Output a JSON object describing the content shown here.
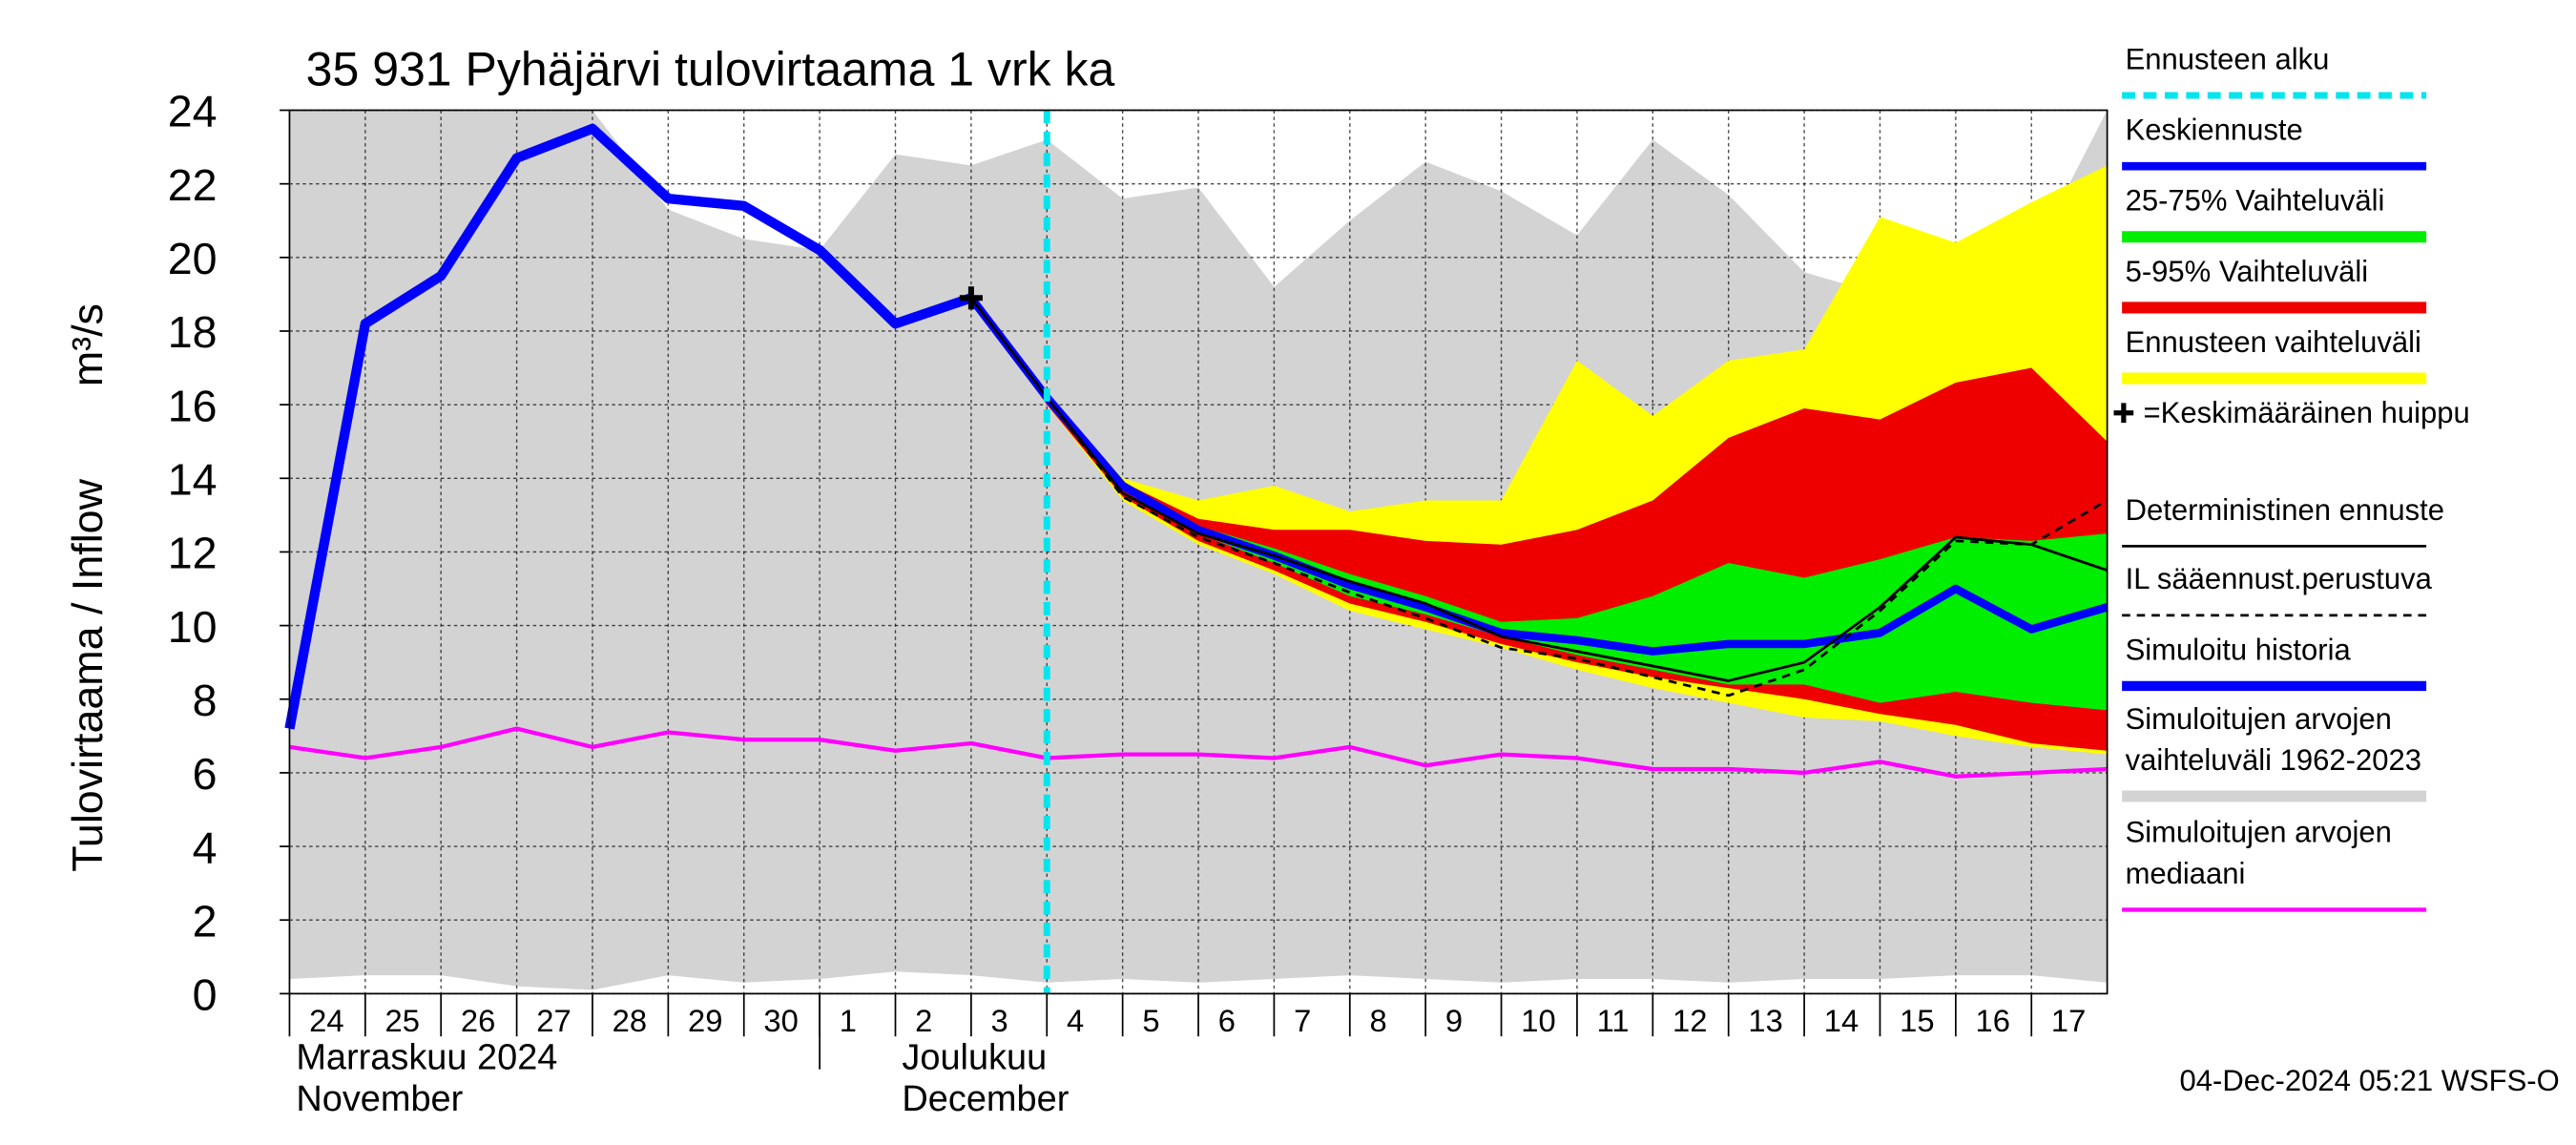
{
  "chart_data": {
    "type": "line",
    "title": "35 931 Pyhäjärvi tulovirtaama 1 vrk ka",
    "ylabel": "Tulovirtaama / Inflow",
    "yunit": "m³/s",
    "xlim": [
      0,
      24
    ],
    "ylim": [
      0,
      24
    ],
    "yticks": [
      0,
      2,
      4,
      6,
      8,
      10,
      12,
      14,
      16,
      18,
      20,
      22,
      24
    ],
    "grid": true,
    "legend": "right",
    "x_labels": [
      "24",
      "25",
      "26",
      "27",
      "28",
      "29",
      "30",
      "1",
      "2",
      "3",
      "4",
      "5",
      "6",
      "7",
      "8",
      "9",
      "10",
      "11",
      "12",
      "13",
      "14",
      "15",
      "16",
      "17"
    ],
    "months": [
      {
        "x": 0,
        "lines": [
          "Marraskuu 2024",
          "November"
        ]
      },
      {
        "x": 8,
        "lines": [
          "Joulukuu",
          "December"
        ]
      }
    ],
    "month_separator": 7,
    "timestamp": "04-Dec-2024 05:21 WSFS-O",
    "series": [
      {
        "name": "Ennusteen alku",
        "kind": "vline",
        "color": "#00e5ee",
        "line_style": "dashed",
        "x": [
          10
        ]
      },
      {
        "name": "Keskiennuste",
        "kind": "line",
        "color": "#0000ff",
        "x": [
          9,
          10,
          11,
          12,
          13,
          14,
          15,
          16,
          17,
          18,
          19,
          20,
          21,
          22,
          23,
          24
        ],
        "values": [
          18.9,
          16.2,
          13.8,
          12.6,
          11.9,
          11.1,
          10.5,
          9.8,
          9.6,
          9.3,
          9.5,
          9.5,
          9.8,
          11.0,
          9.9,
          10.5
        ]
      },
      {
        "name": "25-75% Vaihteluväli",
        "kind": "band",
        "color": "#00ee00",
        "x": [
          9,
          10,
          11,
          12,
          13,
          14,
          15,
          16,
          17,
          18,
          19,
          20,
          21,
          22,
          23,
          24
        ],
        "lower": [
          18.9,
          16.1,
          13.7,
          12.5,
          11.7,
          10.8,
          10.3,
          9.7,
          9.2,
          8.8,
          8.4,
          8.4,
          7.9,
          8.2,
          7.9,
          7.7
        ],
        "upper": [
          18.9,
          16.2,
          13.8,
          12.7,
          12.1,
          11.4,
          10.8,
          10.1,
          10.2,
          10.8,
          11.7,
          11.3,
          11.8,
          12.4,
          12.3,
          12.5
        ]
      },
      {
        "name": "5-95% Vaihteluväli",
        "kind": "band",
        "color": "#ee0000",
        "x": [
          9,
          10,
          11,
          12,
          13,
          14,
          15,
          16,
          17,
          18,
          19,
          20,
          21,
          22,
          23,
          24
        ],
        "lower": [
          18.9,
          16.0,
          13.5,
          12.3,
          11.5,
          10.6,
          10.1,
          9.5,
          9.0,
          8.6,
          8.3,
          8.0,
          7.6,
          7.3,
          6.8,
          6.6
        ],
        "upper": [
          18.9,
          16.2,
          13.9,
          12.9,
          12.6,
          12.6,
          12.3,
          12.2,
          12.6,
          13.4,
          15.1,
          15.9,
          15.6,
          16.6,
          17.0,
          15.0
        ]
      },
      {
        "name": "Ennusteen vaihteluväli",
        "kind": "band",
        "color": "#ffff00",
        "x": [
          9,
          10,
          11,
          12,
          13,
          14,
          15,
          16,
          17,
          18,
          19,
          20,
          21,
          22,
          23,
          24
        ],
        "lower": [
          18.9,
          16.0,
          13.4,
          12.2,
          11.4,
          10.4,
          9.9,
          9.4,
          8.8,
          8.3,
          7.9,
          7.5,
          7.4,
          7.0,
          6.7,
          6.5
        ],
        "upper": [
          18.9,
          16.3,
          14.0,
          13.4,
          13.8,
          13.1,
          13.4,
          13.4,
          17.2,
          15.7,
          17.2,
          17.5,
          21.1,
          20.4,
          21.5,
          22.5
        ]
      },
      {
        "name": "=Keskimääräinen huippu",
        "kind": "marker",
        "color": "#000000",
        "x": [
          9
        ],
        "values": [
          18.9
        ]
      },
      {
        "name": "Deterministinen ennuste",
        "kind": "line",
        "color": "#000000",
        "x": [
          9,
          10,
          11,
          12,
          13,
          14,
          15,
          16,
          17,
          18,
          19,
          20,
          21,
          22,
          23,
          24
        ],
        "values": [
          18.9,
          16.2,
          13.6,
          12.5,
          11.9,
          11.2,
          10.6,
          9.7,
          9.3,
          8.9,
          8.5,
          9.0,
          10.5,
          12.4,
          12.2,
          11.5
        ]
      },
      {
        "name": "IL sääennust.perustuva",
        "kind": "line",
        "color": "#000000",
        "line_style": "dashed",
        "x": [
          9,
          10,
          11,
          12,
          13,
          14,
          15,
          16,
          17,
          18,
          19,
          20,
          21,
          22,
          23,
          24
        ],
        "values": [
          18.9,
          16.2,
          13.5,
          12.4,
          11.7,
          10.9,
          10.2,
          9.4,
          9.1,
          8.6,
          8.1,
          8.8,
          10.4,
          12.3,
          12.2,
          13.4
        ]
      },
      {
        "name": "Simuloitu historia",
        "kind": "line",
        "color": "#0000ff",
        "x": [
          0,
          1,
          2,
          3,
          4,
          5,
          6,
          7,
          8,
          9
        ],
        "values": [
          7.2,
          18.2,
          19.5,
          22.7,
          23.5,
          21.6,
          21.4,
          20.2,
          18.2,
          18.9
        ]
      },
      {
        "name": "Simuloitujen arvojen vaihteluväli 1962-2023",
        "kind": "band",
        "color": "#d3d3d3",
        "x": [
          0,
          1,
          2,
          3,
          4,
          5,
          6,
          7,
          8,
          9,
          10,
          11,
          12,
          13,
          14,
          15,
          16,
          17,
          18,
          19,
          20,
          21,
          22,
          23,
          24
        ],
        "lower": [
          0.4,
          0.5,
          0.5,
          0.2,
          0.1,
          0.5,
          0.3,
          0.4,
          0.6,
          0.5,
          0.3,
          0.4,
          0.3,
          0.4,
          0.5,
          0.4,
          0.3,
          0.4,
          0.4,
          0.3,
          0.4,
          0.4,
          0.5,
          0.5,
          0.3
        ],
        "upper": [
          24,
          24,
          24,
          24,
          24,
          21.3,
          20.5,
          20.2,
          22.8,
          22.5,
          23.2,
          21.6,
          21.9,
          19.2,
          21.0,
          22.6,
          21.8,
          20.6,
          23.2,
          21.7,
          19.6,
          19.0,
          19.0,
          20.0,
          24
        ]
      },
      {
        "name": "Simuloitujen arvojen mediaani",
        "kind": "line",
        "color": "#ff00ff",
        "x": [
          0,
          1,
          2,
          3,
          4,
          5,
          6,
          7,
          8,
          9,
          10,
          11,
          12,
          13,
          14,
          15,
          16,
          17,
          18,
          19,
          20,
          21,
          22,
          23,
          24
        ],
        "values": [
          6.7,
          6.4,
          6.7,
          7.2,
          6.7,
          7.1,
          6.9,
          6.9,
          6.6,
          6.8,
          6.4,
          6.5,
          6.5,
          6.4,
          6.7,
          6.2,
          6.5,
          6.4,
          6.1,
          6.1,
          6.0,
          6.3,
          5.9,
          6.0,
          6.1
        ]
      }
    ]
  }
}
